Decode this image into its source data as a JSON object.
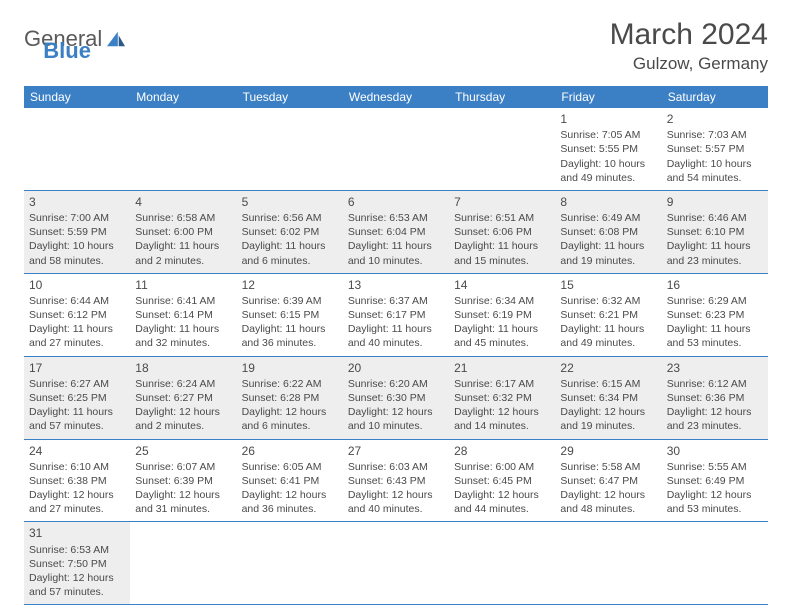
{
  "brand": {
    "name1": "General",
    "name2": "Blue"
  },
  "title": "March 2024",
  "location": "Gulzow, Germany",
  "colors": {
    "header_bg": "#3b7fc4",
    "header_fg": "#ffffff",
    "text": "#4a4a4a",
    "shade": "#eeeeee",
    "rule": "#3b7fc4"
  },
  "weekdays": [
    "Sunday",
    "Monday",
    "Tuesday",
    "Wednesday",
    "Thursday",
    "Friday",
    "Saturday"
  ],
  "weeks": [
    [
      null,
      null,
      null,
      null,
      null,
      {
        "d": "1",
        "sr": "Sunrise: 7:05 AM",
        "ss": "Sunset: 5:55 PM",
        "dl1": "Daylight: 10 hours",
        "dl2": "and 49 minutes."
      },
      {
        "d": "2",
        "sr": "Sunrise: 7:03 AM",
        "ss": "Sunset: 5:57 PM",
        "dl1": "Daylight: 10 hours",
        "dl2": "and 54 minutes."
      }
    ],
    [
      {
        "d": "3",
        "sr": "Sunrise: 7:00 AM",
        "ss": "Sunset: 5:59 PM",
        "dl1": "Daylight: 10 hours",
        "dl2": "and 58 minutes."
      },
      {
        "d": "4",
        "sr": "Sunrise: 6:58 AM",
        "ss": "Sunset: 6:00 PM",
        "dl1": "Daylight: 11 hours",
        "dl2": "and 2 minutes."
      },
      {
        "d": "5",
        "sr": "Sunrise: 6:56 AM",
        "ss": "Sunset: 6:02 PM",
        "dl1": "Daylight: 11 hours",
        "dl2": "and 6 minutes."
      },
      {
        "d": "6",
        "sr": "Sunrise: 6:53 AM",
        "ss": "Sunset: 6:04 PM",
        "dl1": "Daylight: 11 hours",
        "dl2": "and 10 minutes."
      },
      {
        "d": "7",
        "sr": "Sunrise: 6:51 AM",
        "ss": "Sunset: 6:06 PM",
        "dl1": "Daylight: 11 hours",
        "dl2": "and 15 minutes."
      },
      {
        "d": "8",
        "sr": "Sunrise: 6:49 AM",
        "ss": "Sunset: 6:08 PM",
        "dl1": "Daylight: 11 hours",
        "dl2": "and 19 minutes."
      },
      {
        "d": "9",
        "sr": "Sunrise: 6:46 AM",
        "ss": "Sunset: 6:10 PM",
        "dl1": "Daylight: 11 hours",
        "dl2": "and 23 minutes."
      }
    ],
    [
      {
        "d": "10",
        "sr": "Sunrise: 6:44 AM",
        "ss": "Sunset: 6:12 PM",
        "dl1": "Daylight: 11 hours",
        "dl2": "and 27 minutes."
      },
      {
        "d": "11",
        "sr": "Sunrise: 6:41 AM",
        "ss": "Sunset: 6:14 PM",
        "dl1": "Daylight: 11 hours",
        "dl2": "and 32 minutes."
      },
      {
        "d": "12",
        "sr": "Sunrise: 6:39 AM",
        "ss": "Sunset: 6:15 PM",
        "dl1": "Daylight: 11 hours",
        "dl2": "and 36 minutes."
      },
      {
        "d": "13",
        "sr": "Sunrise: 6:37 AM",
        "ss": "Sunset: 6:17 PM",
        "dl1": "Daylight: 11 hours",
        "dl2": "and 40 minutes."
      },
      {
        "d": "14",
        "sr": "Sunrise: 6:34 AM",
        "ss": "Sunset: 6:19 PM",
        "dl1": "Daylight: 11 hours",
        "dl2": "and 45 minutes."
      },
      {
        "d": "15",
        "sr": "Sunrise: 6:32 AM",
        "ss": "Sunset: 6:21 PM",
        "dl1": "Daylight: 11 hours",
        "dl2": "and 49 minutes."
      },
      {
        "d": "16",
        "sr": "Sunrise: 6:29 AM",
        "ss": "Sunset: 6:23 PM",
        "dl1": "Daylight: 11 hours",
        "dl2": "and 53 minutes."
      }
    ],
    [
      {
        "d": "17",
        "sr": "Sunrise: 6:27 AM",
        "ss": "Sunset: 6:25 PM",
        "dl1": "Daylight: 11 hours",
        "dl2": "and 57 minutes."
      },
      {
        "d": "18",
        "sr": "Sunrise: 6:24 AM",
        "ss": "Sunset: 6:27 PM",
        "dl1": "Daylight: 12 hours",
        "dl2": "and 2 minutes."
      },
      {
        "d": "19",
        "sr": "Sunrise: 6:22 AM",
        "ss": "Sunset: 6:28 PM",
        "dl1": "Daylight: 12 hours",
        "dl2": "and 6 minutes."
      },
      {
        "d": "20",
        "sr": "Sunrise: 6:20 AM",
        "ss": "Sunset: 6:30 PM",
        "dl1": "Daylight: 12 hours",
        "dl2": "and 10 minutes."
      },
      {
        "d": "21",
        "sr": "Sunrise: 6:17 AM",
        "ss": "Sunset: 6:32 PM",
        "dl1": "Daylight: 12 hours",
        "dl2": "and 14 minutes."
      },
      {
        "d": "22",
        "sr": "Sunrise: 6:15 AM",
        "ss": "Sunset: 6:34 PM",
        "dl1": "Daylight: 12 hours",
        "dl2": "and 19 minutes."
      },
      {
        "d": "23",
        "sr": "Sunrise: 6:12 AM",
        "ss": "Sunset: 6:36 PM",
        "dl1": "Daylight: 12 hours",
        "dl2": "and 23 minutes."
      }
    ],
    [
      {
        "d": "24",
        "sr": "Sunrise: 6:10 AM",
        "ss": "Sunset: 6:38 PM",
        "dl1": "Daylight: 12 hours",
        "dl2": "and 27 minutes."
      },
      {
        "d": "25",
        "sr": "Sunrise: 6:07 AM",
        "ss": "Sunset: 6:39 PM",
        "dl1": "Daylight: 12 hours",
        "dl2": "and 31 minutes."
      },
      {
        "d": "26",
        "sr": "Sunrise: 6:05 AM",
        "ss": "Sunset: 6:41 PM",
        "dl1": "Daylight: 12 hours",
        "dl2": "and 36 minutes."
      },
      {
        "d": "27",
        "sr": "Sunrise: 6:03 AM",
        "ss": "Sunset: 6:43 PM",
        "dl1": "Daylight: 12 hours",
        "dl2": "and 40 minutes."
      },
      {
        "d": "28",
        "sr": "Sunrise: 6:00 AM",
        "ss": "Sunset: 6:45 PM",
        "dl1": "Daylight: 12 hours",
        "dl2": "and 44 minutes."
      },
      {
        "d": "29",
        "sr": "Sunrise: 5:58 AM",
        "ss": "Sunset: 6:47 PM",
        "dl1": "Daylight: 12 hours",
        "dl2": "and 48 minutes."
      },
      {
        "d": "30",
        "sr": "Sunrise: 5:55 AM",
        "ss": "Sunset: 6:49 PM",
        "dl1": "Daylight: 12 hours",
        "dl2": "and 53 minutes."
      }
    ],
    [
      {
        "d": "31",
        "sr": "Sunrise: 6:53 AM",
        "ss": "Sunset: 7:50 PM",
        "dl1": "Daylight: 12 hours",
        "dl2": "and 57 minutes."
      },
      null,
      null,
      null,
      null,
      null,
      null
    ]
  ]
}
